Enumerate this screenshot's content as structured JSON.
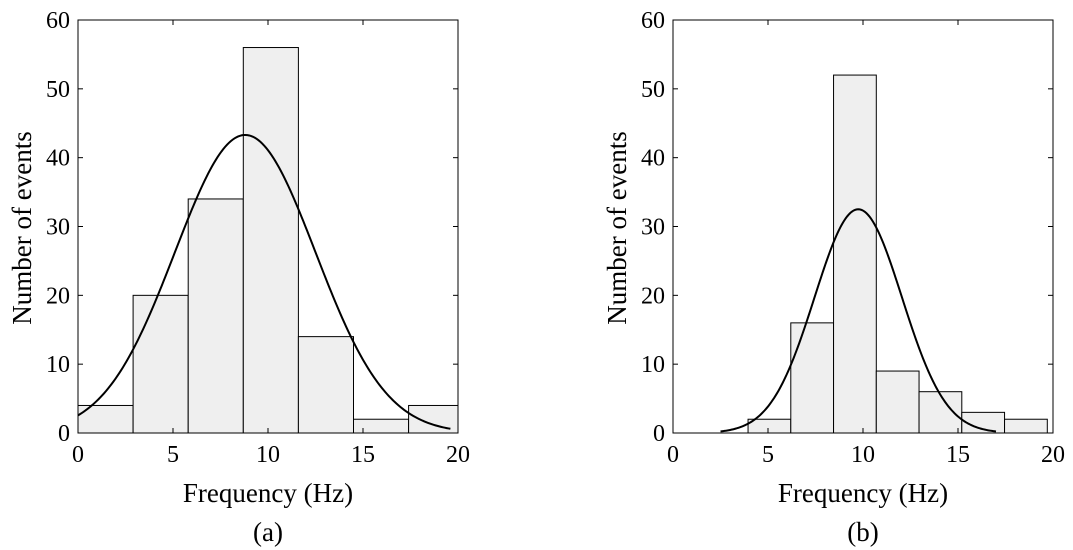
{
  "chart_data": [
    {
      "type": "bar",
      "caption": "(a)",
      "xlabel": "Frequency (Hz)",
      "ylabel": "Number of events",
      "xlim": [
        0,
        20
      ],
      "ylim": [
        0,
        60
      ],
      "xticks": [
        0,
        5,
        10,
        15,
        20
      ],
      "yticks": [
        0,
        10,
        20,
        30,
        40,
        50,
        60
      ],
      "bins": [
        {
          "from": 0.0,
          "to": 2.9,
          "value": 4
        },
        {
          "from": 2.9,
          "to": 5.8,
          "value": 20
        },
        {
          "from": 5.8,
          "to": 8.7,
          "value": 34
        },
        {
          "from": 8.7,
          "to": 11.6,
          "value": 56
        },
        {
          "from": 11.6,
          "to": 14.5,
          "value": 14
        },
        {
          "from": 14.5,
          "to": 17.4,
          "value": 2
        },
        {
          "from": 17.4,
          "to": 20.0,
          "value": 4
        }
      ],
      "fit_curve": {
        "type": "normal",
        "mean": 8.8,
        "std": 3.7,
        "peak": 43.3,
        "x_range": [
          0,
          19.6
        ]
      },
      "bar_fill": "#efefef",
      "grid": false
    },
    {
      "type": "bar",
      "caption": "(b)",
      "xlabel": "Frequency (Hz)",
      "ylabel": "Number of events",
      "xlim": [
        0,
        20
      ],
      "ylim": [
        0,
        60
      ],
      "xticks": [
        0,
        5,
        10,
        15,
        20
      ],
      "yticks": [
        0,
        10,
        20,
        30,
        40,
        50,
        60
      ],
      "bins": [
        {
          "from": 3.95,
          "to": 6.2,
          "value": 2
        },
        {
          "from": 6.2,
          "to": 8.45,
          "value": 16
        },
        {
          "from": 8.45,
          "to": 10.7,
          "value": 52
        },
        {
          "from": 10.7,
          "to": 12.95,
          "value": 9
        },
        {
          "from": 12.95,
          "to": 15.2,
          "value": 6
        },
        {
          "from": 15.2,
          "to": 17.45,
          "value": 3
        },
        {
          "from": 17.45,
          "to": 19.7,
          "value": 2
        }
      ],
      "fit_curve": {
        "type": "normal",
        "mean": 9.75,
        "std": 2.3,
        "peak": 32.5,
        "x_range": [
          2.5,
          17.0
        ]
      },
      "bar_fill": "#efefef",
      "grid": false
    }
  ]
}
